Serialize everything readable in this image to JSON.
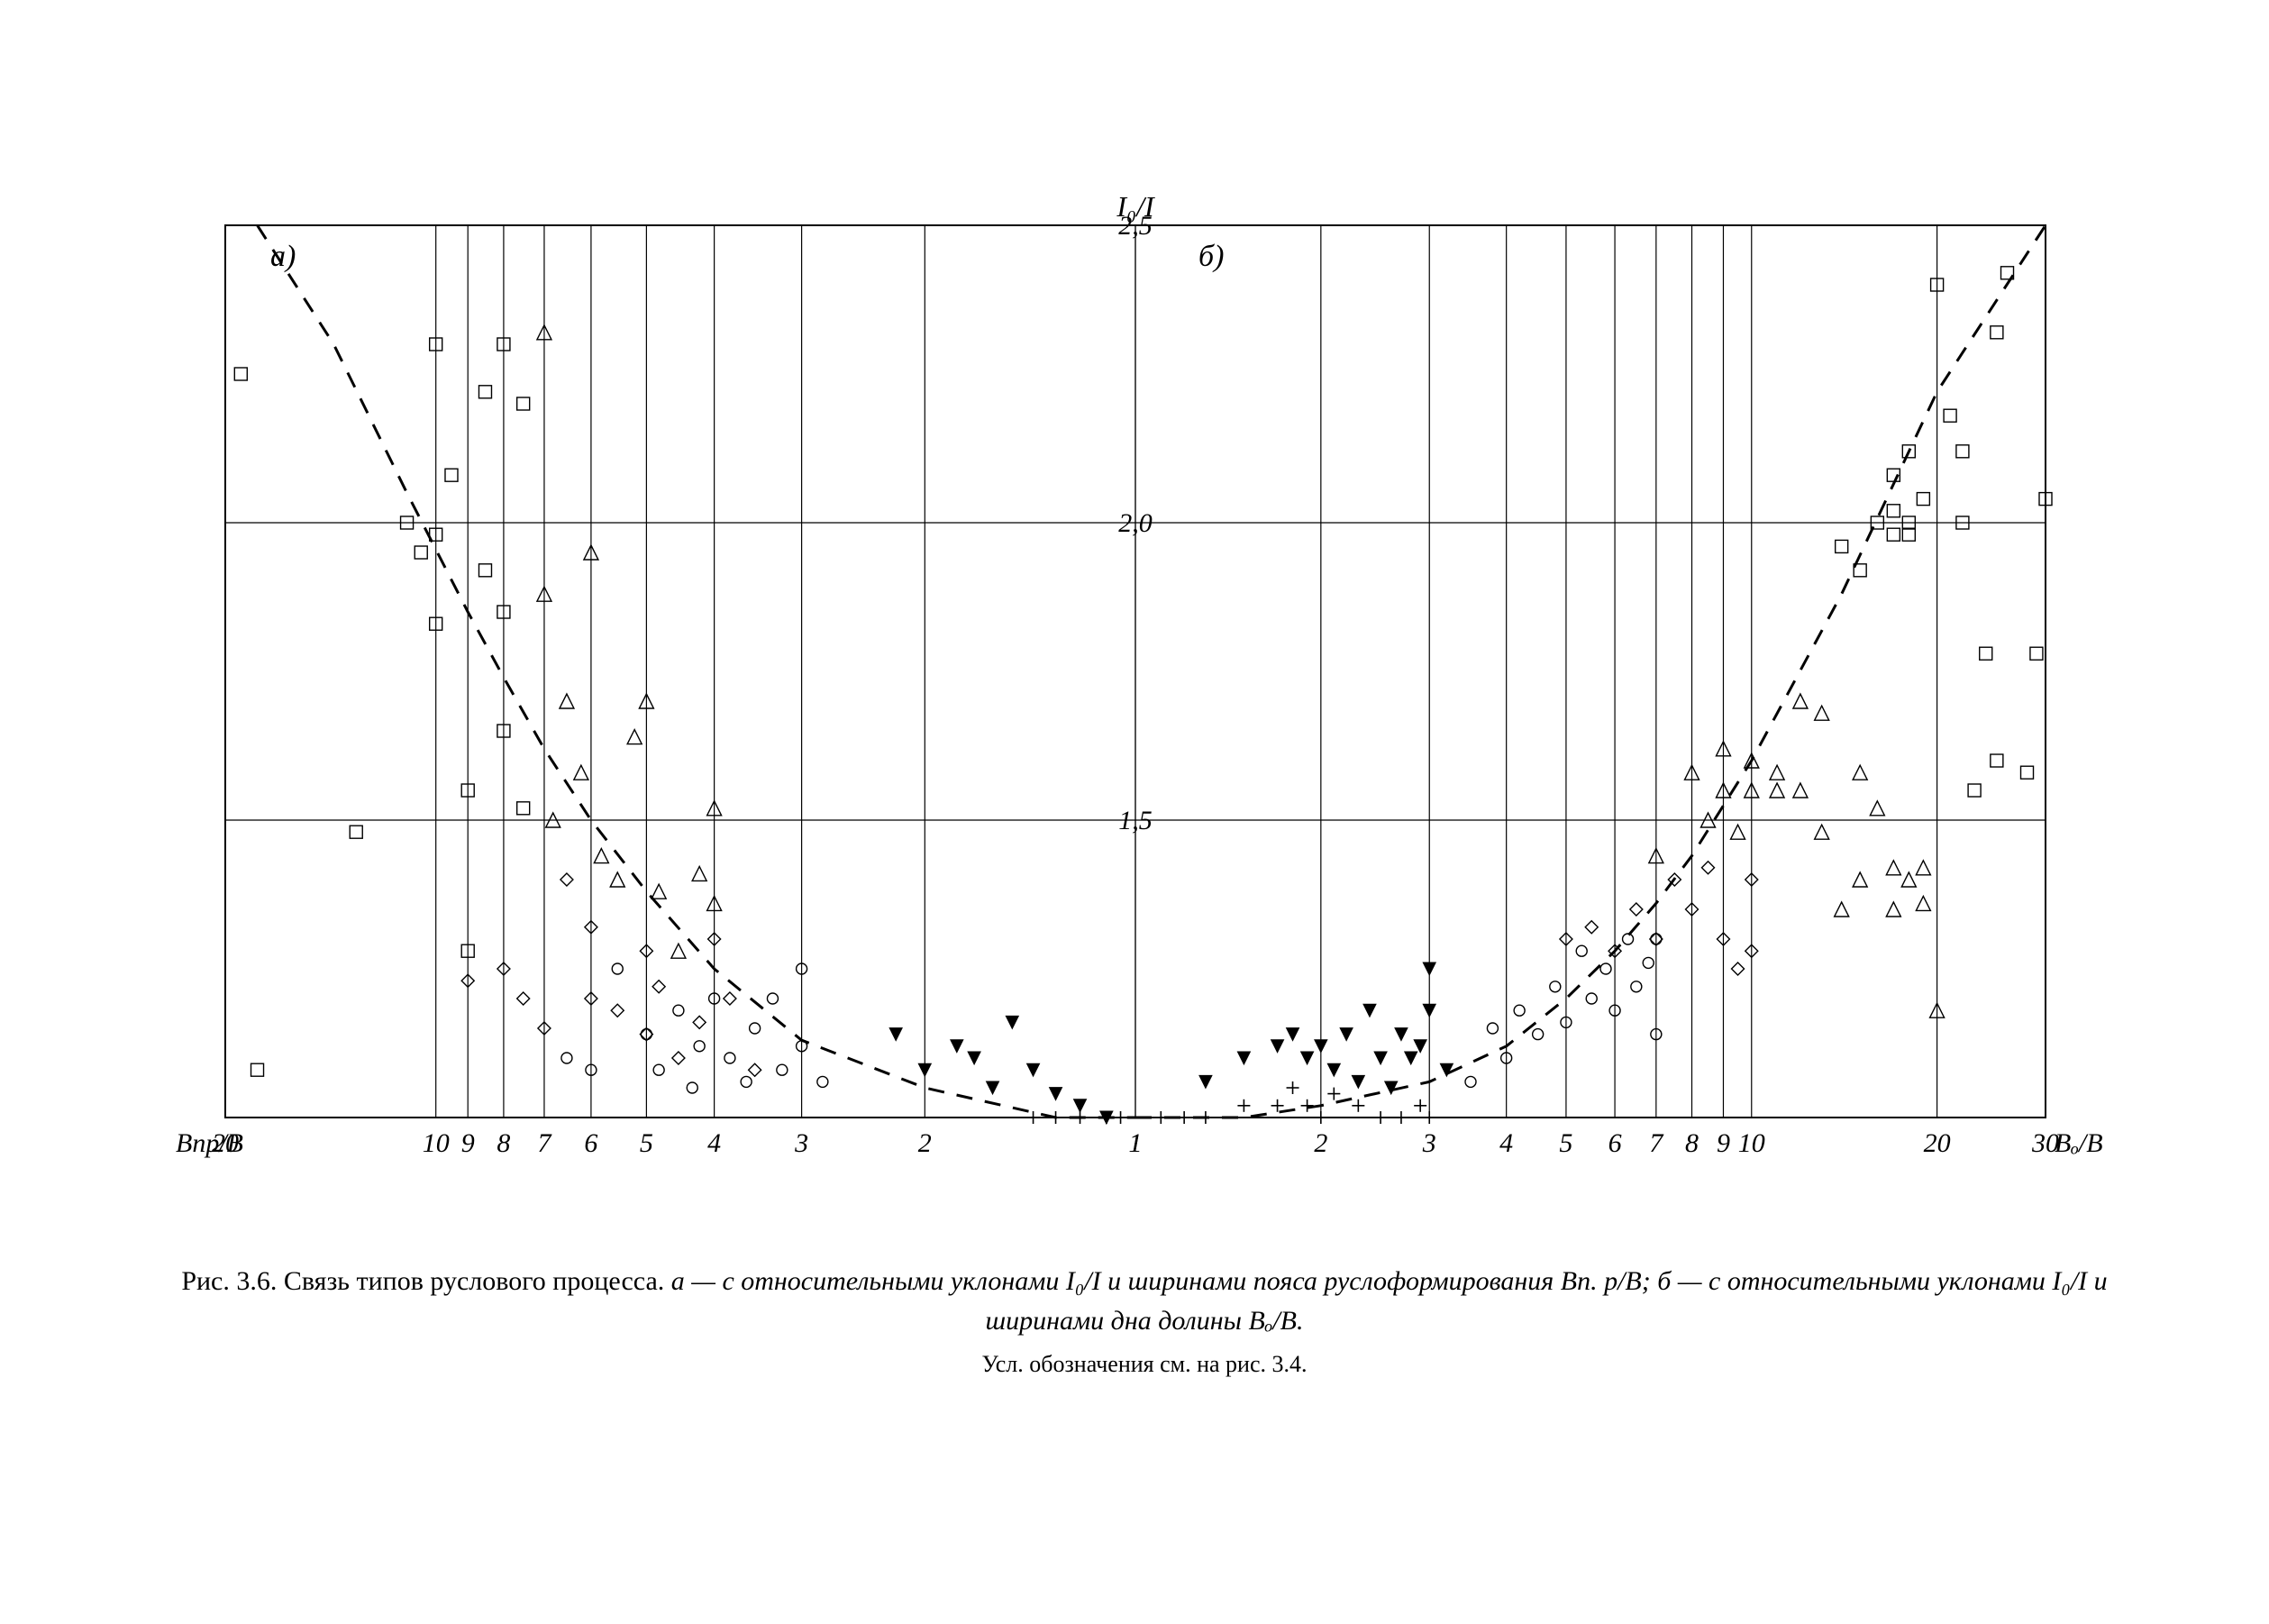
{
  "chart": {
    "type": "scatter",
    "background_color": "#ffffff",
    "frame_color": "#000000",
    "grid_color": "#000000",
    "line_width_frame": 2,
    "line_width_grid": 1.2,
    "dash_curve": "18 14",
    "y": {
      "label": "I₀/I",
      "min": 1.0,
      "max": 2.5,
      "ticks": [
        1.0,
        1.5,
        2.0,
        2.5
      ],
      "tick_labels": [
        "",
        "1,5",
        "2,0",
        "2,5"
      ],
      "label_fontsize": 32
    },
    "panel_a": {
      "label": "а)",
      "x_label_left": "Bпр/B",
      "x_min": 1,
      "x_max": 20,
      "scale": "log_reversed",
      "x_ticks": [
        20,
        10,
        9,
        8,
        7,
        6,
        5,
        4,
        3,
        2,
        1
      ],
      "x_tick_labels": [
        "20",
        "10",
        "9",
        "8",
        "7",
        "6",
        "5",
        "4",
        "3",
        "2",
        "1"
      ]
    },
    "panel_b": {
      "label": "б)",
      "x_label_right": "Bₒ/B",
      "x_min": 1,
      "x_max": 30,
      "scale": "log",
      "x_ticks": [
        1,
        2,
        3,
        4,
        5,
        6,
        7,
        8,
        9,
        10,
        20,
        30
      ],
      "x_tick_labels": [
        "1",
        "2",
        "3",
        "4",
        "5",
        "6",
        "7",
        "8",
        "9",
        "10",
        "20",
        "30"
      ]
    },
    "markers": {
      "square": {
        "stroke": "#000000",
        "fill": "none",
        "size": 14
      },
      "triangle": {
        "stroke": "#000000",
        "fill": "none",
        "size": 16
      },
      "diamond": {
        "stroke": "#000000",
        "fill": "none",
        "size": 14
      },
      "circle": {
        "stroke": "#000000",
        "fill": "none",
        "size": 12
      },
      "tri_fill": {
        "stroke": "#000000",
        "fill": "#000000",
        "size": 14
      },
      "plus": {
        "stroke": "#000000",
        "fill": "none",
        "size": 14
      }
    },
    "series_a": {
      "square": [
        [
          19,
          2.25
        ],
        [
          18,
          1.08
        ],
        [
          11,
          2.0
        ],
        [
          10.5,
          1.95
        ],
        [
          10,
          1.83
        ],
        [
          10,
          1.98
        ],
        [
          10,
          2.3
        ],
        [
          9.5,
          2.08
        ],
        [
          9,
          1.28
        ],
        [
          9,
          1.55
        ],
        [
          8.5,
          2.22
        ],
        [
          8.5,
          1.92
        ],
        [
          8,
          2.3
        ],
        [
          8,
          1.85
        ],
        [
          8,
          1.65
        ],
        [
          7.5,
          2.2
        ],
        [
          7.5,
          1.52
        ],
        [
          13,
          1.48
        ]
      ],
      "triangle": [
        [
          7,
          2.32
        ],
        [
          7,
          1.88
        ],
        [
          6.8,
          1.5
        ],
        [
          6.5,
          1.7
        ],
        [
          6.2,
          1.58
        ],
        [
          6,
          1.95
        ],
        [
          5.8,
          1.44
        ],
        [
          5.5,
          1.4
        ],
        [
          5.2,
          1.64
        ],
        [
          5,
          1.7
        ],
        [
          4.8,
          1.38
        ],
        [
          4.5,
          1.28
        ],
        [
          4.2,
          1.41
        ],
        [
          4,
          1.52
        ],
        [
          4,
          1.36
        ]
      ],
      "diamond": [
        [
          9,
          1.23
        ],
        [
          8,
          1.25
        ],
        [
          7.5,
          1.2
        ],
        [
          7,
          1.15
        ],
        [
          6.5,
          1.4
        ],
        [
          6,
          1.32
        ],
        [
          6,
          1.2
        ],
        [
          5.5,
          1.18
        ],
        [
          5,
          1.28
        ],
        [
          5,
          1.14
        ],
        [
          4.8,
          1.22
        ],
        [
          4.5,
          1.1
        ],
        [
          4.2,
          1.16
        ],
        [
          4,
          1.3
        ],
        [
          3.8,
          1.2
        ],
        [
          3.5,
          1.08
        ]
      ],
      "circle": [
        [
          6.5,
          1.1
        ],
        [
          6,
          1.08
        ],
        [
          5.5,
          1.25
        ],
        [
          5,
          1.14
        ],
        [
          4.8,
          1.08
        ],
        [
          4.5,
          1.18
        ],
        [
          4.3,
          1.05
        ],
        [
          4.2,
          1.12
        ],
        [
          4,
          1.2
        ],
        [
          3.8,
          1.1
        ],
        [
          3.6,
          1.06
        ],
        [
          3.5,
          1.15
        ],
        [
          3.3,
          1.2
        ],
        [
          3.2,
          1.08
        ],
        [
          3,
          1.12
        ],
        [
          3,
          1.25
        ],
        [
          2.8,
          1.06
        ]
      ],
      "tri_fill": [
        [
          2.2,
          1.14
        ],
        [
          2.0,
          1.08
        ],
        [
          1.8,
          1.12
        ],
        [
          1.7,
          1.1
        ],
        [
          1.6,
          1.05
        ],
        [
          1.5,
          1.16
        ],
        [
          1.4,
          1.08
        ],
        [
          1.3,
          1.04
        ],
        [
          1.2,
          1.02
        ],
        [
          1.1,
          1.0
        ]
      ],
      "plus": [
        [
          1.4,
          1.0
        ],
        [
          1.3,
          1.0
        ],
        [
          1.2,
          1.0
        ],
        [
          1.1,
          1.0
        ],
        [
          1.05,
          1.0
        ]
      ]
    },
    "series_b": {
      "plus": [
        [
          1.1,
          1.0
        ],
        [
          1.2,
          1.0
        ],
        [
          1.3,
          1.0
        ],
        [
          1.5,
          1.02
        ],
        [
          1.7,
          1.02
        ],
        [
          1.8,
          1.05
        ],
        [
          1.9,
          1.02
        ],
        [
          2.0,
          1.0
        ],
        [
          2.1,
          1.04
        ],
        [
          2.3,
          1.02
        ],
        [
          2.5,
          1.0
        ],
        [
          2.7,
          1.0
        ],
        [
          2.9,
          1.02
        ],
        [
          3.0,
          1.0
        ]
      ],
      "tri_fill": [
        [
          1.3,
          1.06
        ],
        [
          1.5,
          1.1
        ],
        [
          1.7,
          1.12
        ],
        [
          1.8,
          1.14
        ],
        [
          1.9,
          1.1
        ],
        [
          2.0,
          1.12
        ],
        [
          2.1,
          1.08
        ],
        [
          2.2,
          1.14
        ],
        [
          2.3,
          1.06
        ],
        [
          2.4,
          1.18
        ],
        [
          2.5,
          1.1
        ],
        [
          2.6,
          1.05
        ],
        [
          2.7,
          1.14
        ],
        [
          2.8,
          1.1
        ],
        [
          2.9,
          1.12
        ],
        [
          3.0,
          1.18
        ],
        [
          3.2,
          1.08
        ],
        [
          3.0,
          1.25
        ]
      ],
      "circle": [
        [
          3.5,
          1.06
        ],
        [
          3.8,
          1.15
        ],
        [
          4.0,
          1.1
        ],
        [
          4.2,
          1.18
        ],
        [
          4.5,
          1.14
        ],
        [
          4.8,
          1.22
        ],
        [
          5.0,
          1.16
        ],
        [
          5.3,
          1.28
        ],
        [
          5.5,
          1.2
        ],
        [
          5.8,
          1.25
        ],
        [
          6.0,
          1.18
        ],
        [
          6.3,
          1.3
        ],
        [
          6.5,
          1.22
        ],
        [
          6.8,
          1.26
        ],
        [
          7.0,
          1.3
        ],
        [
          7.0,
          1.14
        ]
      ],
      "diamond": [
        [
          5.0,
          1.3
        ],
        [
          5.5,
          1.32
        ],
        [
          6.0,
          1.28
        ],
        [
          6.5,
          1.35
        ],
        [
          7.0,
          1.3
        ],
        [
          7.5,
          1.4
        ],
        [
          8.0,
          1.35
        ],
        [
          8.5,
          1.42
        ],
        [
          9.0,
          1.3
        ],
        [
          9.5,
          1.25
        ],
        [
          10,
          1.4
        ],
        [
          10,
          1.28
        ]
      ],
      "triangle": [
        [
          7,
          1.44
        ],
        [
          8,
          1.58
        ],
        [
          8.5,
          1.5
        ],
        [
          9,
          1.55
        ],
        [
          9,
          1.62
        ],
        [
          9.5,
          1.48
        ],
        [
          10,
          1.55
        ],
        [
          10,
          1.6
        ],
        [
          11,
          1.55
        ],
        [
          11,
          1.58
        ],
        [
          12,
          1.7
        ],
        [
          12,
          1.55
        ],
        [
          13,
          1.48
        ],
        [
          13,
          1.68
        ],
        [
          14,
          1.35
        ],
        [
          15,
          1.58
        ],
        [
          15,
          1.4
        ],
        [
          16,
          1.52
        ],
        [
          17,
          1.35
        ],
        [
          17,
          1.42
        ],
        [
          18,
          1.4
        ],
        [
          19,
          1.36
        ],
        [
          19,
          1.42
        ],
        [
          20,
          1.18
        ]
      ],
      "square": [
        [
          14,
          1.96
        ],
        [
          15,
          1.92
        ],
        [
          16,
          2.0
        ],
        [
          17,
          2.08
        ],
        [
          17,
          2.02
        ],
        [
          17,
          1.98
        ],
        [
          18,
          2.0
        ],
        [
          18,
          1.98
        ],
        [
          18,
          2.12
        ],
        [
          19,
          2.04
        ],
        [
          20,
          2.4
        ],
        [
          21,
          2.18
        ],
        [
          22,
          2.12
        ],
        [
          22,
          2.0
        ],
        [
          23,
          1.55
        ],
        [
          24,
          1.78
        ],
        [
          25,
          1.6
        ],
        [
          25,
          2.32
        ],
        [
          26,
          2.42
        ],
        [
          28,
          1.58
        ],
        [
          29,
          1.78
        ],
        [
          30,
          2.04
        ]
      ]
    },
    "curve_a": [
      [
        18,
        2.5
      ],
      [
        14,
        2.3
      ],
      [
        11,
        2.05
      ],
      [
        9,
        1.85
      ],
      [
        8,
        1.74
      ],
      [
        7,
        1.62
      ],
      [
        6,
        1.5
      ],
      [
        5,
        1.38
      ],
      [
        4,
        1.25
      ],
      [
        3,
        1.13
      ],
      [
        2,
        1.05
      ],
      [
        1.3,
        1.0
      ],
      [
        1,
        1.0
      ]
    ],
    "curve_b": [
      [
        1,
        1.0
      ],
      [
        1.5,
        1.0
      ],
      [
        2,
        1.02
      ],
      [
        3,
        1.06
      ],
      [
        4,
        1.12
      ],
      [
        5,
        1.2
      ],
      [
        6,
        1.28
      ],
      [
        7,
        1.36
      ],
      [
        8,
        1.44
      ],
      [
        10,
        1.6
      ],
      [
        14,
        1.88
      ],
      [
        20,
        2.22
      ],
      [
        30,
        2.5
      ]
    ]
  },
  "caption": {
    "line1_prefix": "Рис. 3.6. Связь типов руслового процесса. ",
    "line1_a": "а — с относительными уклонами I₀/I и ширинами пояса руслоформирования Bп. р/B; ",
    "line1_b": "б — с относительными уклонами I₀/I и ширинами дна долины Bₒ/B.",
    "line2": "Усл. обозначения см. на рис. 3.4."
  },
  "style": {
    "tick_fontsize": 30,
    "panel_label_fontsize": 34
  }
}
